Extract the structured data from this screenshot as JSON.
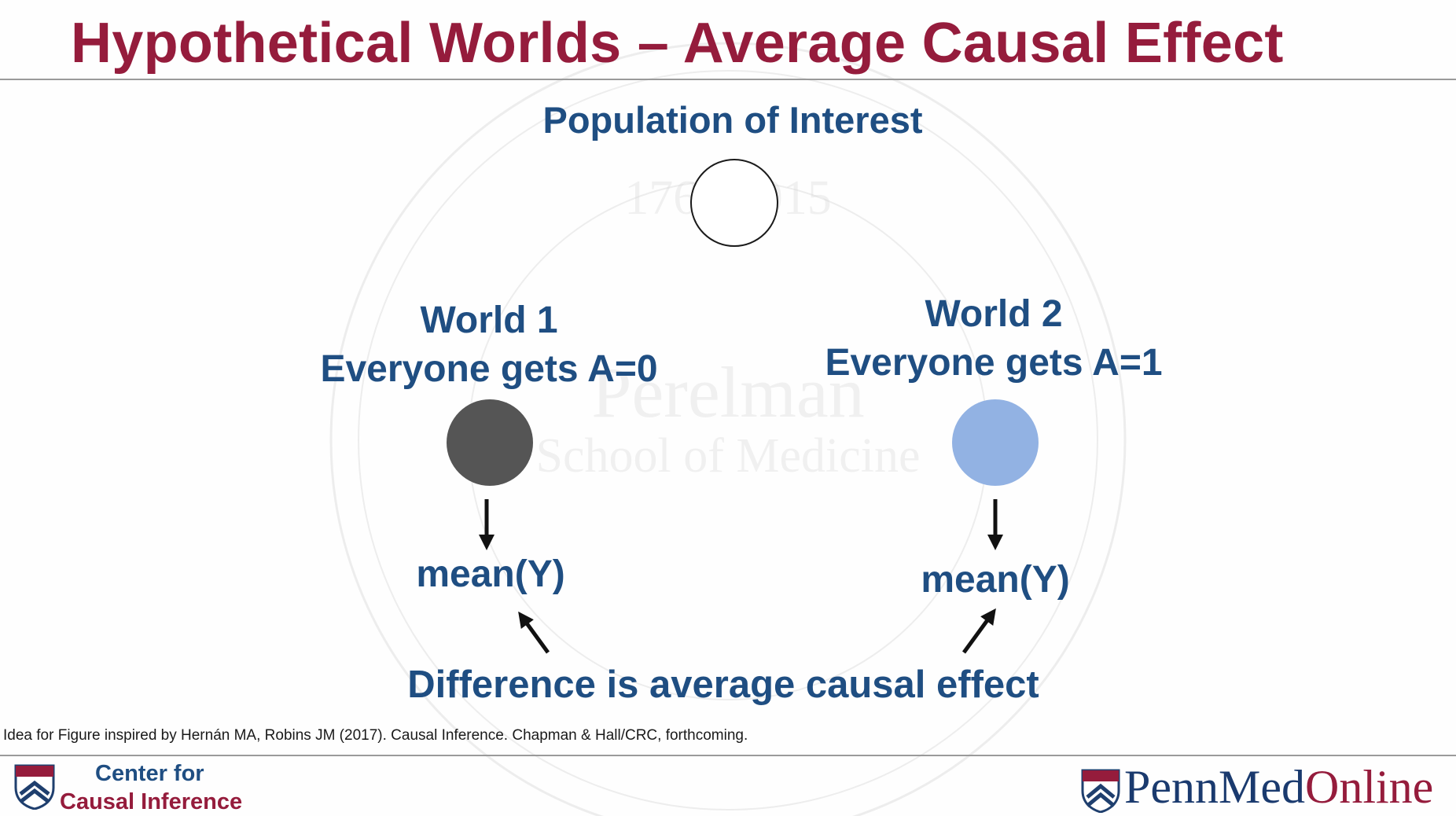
{
  "slide": {
    "title": "Hypothetical Worlds – Average Causal Effect",
    "watermark_text": "Perelman School of Medicine",
    "watermark_years": "1765 2015",
    "colors": {
      "title": "#951c3c",
      "heading": "#1f4e82",
      "world1_circle": "#555555",
      "world2_circle": "#92b2e3"
    }
  },
  "diagram": {
    "population_label": "Population of Interest",
    "world1": {
      "name": "World 1",
      "treatment": "Everyone gets A=0",
      "outcome": "mean(Y)"
    },
    "world2": {
      "name": "World 2",
      "treatment": "Everyone gets A=1",
      "outcome": "mean(Y)"
    },
    "difference_label": "Difference is average causal effect"
  },
  "citation": "Idea for Figure inspired by Hernán MA, Robins JM (2017). Causal Inference. Chapman & Hall/CRC, forthcoming.",
  "footer": {
    "org_line1": "Center for",
    "org_line2": "Causal Inference",
    "brand_part1": "PennMed",
    "brand_part2": "Online",
    "left_icon": "penn-shield-icon",
    "right_icon": "penn-shield-icon"
  }
}
